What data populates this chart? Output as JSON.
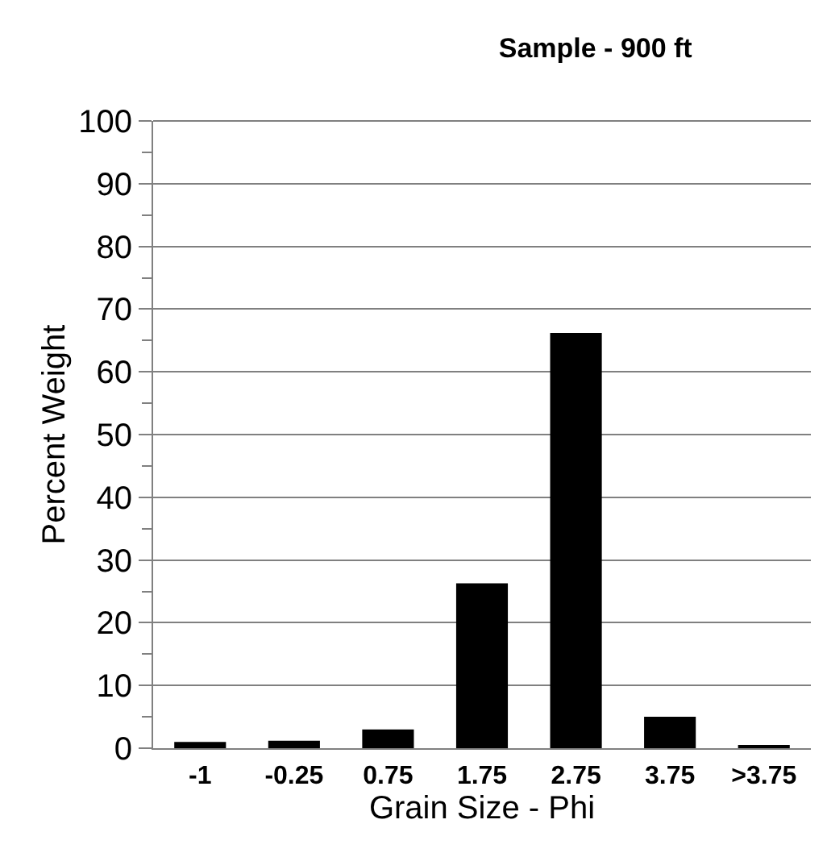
{
  "chart_data": {
    "type": "bar",
    "title": "Sample - 900 ft",
    "xlabel": "Grain Size - Phi",
    "ylabel": "Percent Weight",
    "categories": [
      "-1",
      "-0.25",
      "0.75",
      "1.75",
      "2.75",
      "3.75",
      ">3.75"
    ],
    "values": [
      1.0,
      1.2,
      3.0,
      26.3,
      66.2,
      5.0,
      0.3
    ],
    "color": "#000000",
    "ylim": [
      0,
      100
    ],
    "yticks": [
      0,
      10,
      20,
      30,
      40,
      50,
      60,
      70,
      80,
      90,
      100
    ],
    "grid": "y"
  }
}
